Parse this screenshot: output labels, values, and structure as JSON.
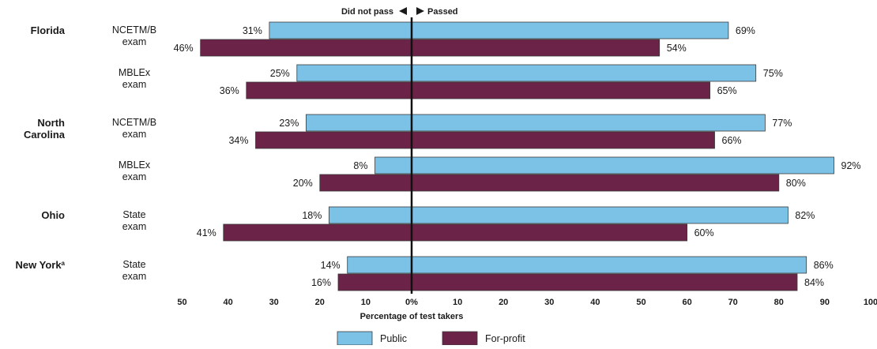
{
  "chart_data": {
    "type": "bar",
    "orientation": "horizontal-diverging",
    "header": {
      "left": "Did not pass",
      "right": "Passed"
    },
    "xlabel": "Percentage of test takers",
    "x_ticks_left": [
      "50",
      "40",
      "30",
      "20",
      "10",
      "0%"
    ],
    "x_ticks_right": [
      "10",
      "20",
      "30",
      "40",
      "50",
      "60",
      "70",
      "80",
      "90",
      "100"
    ],
    "xlim_left": [
      0,
      50
    ],
    "xlim_right": [
      0,
      100
    ],
    "colors": {
      "public": "#7cc1e6",
      "forprofit": "#6b2348",
      "outline": "#3a3a3a"
    },
    "legend": {
      "placement": "bottom",
      "entries": [
        "Public",
        "For-profit"
      ]
    },
    "groups": [
      {
        "state": "Florida",
        "exam": "NCETM/B exam",
        "exam_lines": [
          "NCETM/B",
          "exam"
        ],
        "public": {
          "failed": 31,
          "passed": 69,
          "failed_label": "31%",
          "passed_label": "69%"
        },
        "forprofit": {
          "failed": 46,
          "passed": 54,
          "failed_label": "46%",
          "passed_label": "54%"
        }
      },
      {
        "state": "",
        "exam": "MBLEx exam",
        "exam_lines": [
          "MBLEx",
          "exam"
        ],
        "public": {
          "failed": 25,
          "passed": 75,
          "failed_label": "25%",
          "passed_label": "75%"
        },
        "forprofit": {
          "failed": 36,
          "passed": 65,
          "failed_label": "36%",
          "passed_label": "65%"
        }
      },
      {
        "state": "North Carolina",
        "state_lines": [
          "North",
          "Carolina"
        ],
        "exam": "NCETM/B exam",
        "exam_lines": [
          "NCETM/B",
          "exam"
        ],
        "public": {
          "failed": 23,
          "passed": 77,
          "failed_label": "23%",
          "passed_label": "77%"
        },
        "forprofit": {
          "failed": 34,
          "passed": 66,
          "failed_label": "34%",
          "passed_label": "66%"
        }
      },
      {
        "state": "",
        "exam": "MBLEx exam",
        "exam_lines": [
          "MBLEx",
          "exam"
        ],
        "public": {
          "failed": 8,
          "passed": 92,
          "failed_label": "8%",
          "passed_label": "92%"
        },
        "forprofit": {
          "failed": 20,
          "passed": 80,
          "failed_label": "20%",
          "passed_label": "80%"
        }
      },
      {
        "state": "Ohio",
        "exam": "State exam",
        "exam_lines": [
          "State",
          "exam"
        ],
        "public": {
          "failed": 18,
          "passed": 82,
          "failed_label": "18%",
          "passed_label": "82%"
        },
        "forprofit": {
          "failed": 41,
          "passed": 60,
          "failed_label": "41%",
          "passed_label": "60%"
        }
      },
      {
        "state": "New York",
        "state_sup": "a",
        "exam": "State exam",
        "exam_lines": [
          "State",
          "exam"
        ],
        "public": {
          "failed": 14,
          "passed": 86,
          "failed_label": "14%",
          "passed_label": "86%"
        },
        "forprofit": {
          "failed": 16,
          "passed": 84,
          "failed_label": "16%",
          "passed_label": "84%"
        }
      }
    ]
  }
}
